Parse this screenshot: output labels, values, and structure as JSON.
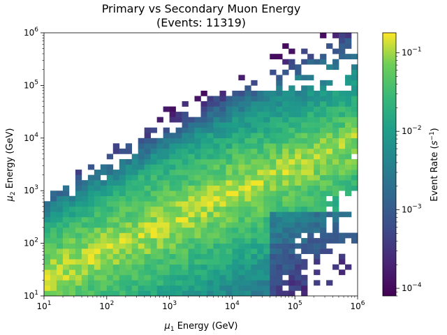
{
  "chart_data": {
    "type": "heatmap",
    "title": "Primary vs Secondary Muon Energy",
    "subtitle": "(Events: 11319)",
    "xlabel_prefix": "μ",
    "xlabel_sub": "1",
    "xlabel_suffix": " Energy (GeV)",
    "ylabel_prefix": "μ",
    "ylabel_sub": "2",
    "ylabel_suffix": " Energy (GeV)",
    "x_scale": "log",
    "y_scale": "log",
    "xlim": [
      10,
      1000000
    ],
    "ylim": [
      10,
      1000000
    ],
    "x_ticks": [
      {
        "value": 10,
        "base": "10",
        "exp": "1"
      },
      {
        "value": 100,
        "base": "10",
        "exp": "2"
      },
      {
        "value": 1000,
        "base": "10",
        "exp": "3"
      },
      {
        "value": 10000,
        "base": "10",
        "exp": "4"
      },
      {
        "value": 100000,
        "base": "10",
        "exp": "5"
      },
      {
        "value": 1000000,
        "base": "10",
        "exp": "6"
      }
    ],
    "y_ticks": [
      {
        "value": 10,
        "base": "10",
        "exp": "1"
      },
      {
        "value": 100,
        "base": "10",
        "exp": "2"
      },
      {
        "value": 1000,
        "base": "10",
        "exp": "3"
      },
      {
        "value": 10000,
        "base": "10",
        "exp": "4"
      },
      {
        "value": 100000,
        "base": "10",
        "exp": "5"
      },
      {
        "value": 1000000,
        "base": "10",
        "exp": "6"
      }
    ],
    "bins_per_decade": 10,
    "colormap": "viridis",
    "colorbar": {
      "label_prefix": "Event Rate (",
      "label_unit": "s",
      "label_exp": "−1",
      "label_suffix": ")",
      "scale": "log",
      "range": [
        8e-05,
        0.18
      ],
      "ticks": [
        {
          "value": 0.0001,
          "base": "10",
          "exp": "−4"
        },
        {
          "value": 0.001,
          "base": "10",
          "exp": "−3"
        },
        {
          "value": 0.01,
          "base": "10",
          "exp": "−2"
        },
        {
          "value": 0.1,
          "base": "10",
          "exp": "−1"
        }
      ]
    },
    "density_model": {
      "description_of_distribution": "band of high rate along low x / low y, declining with energy",
      "peak_rate": 0.15,
      "min_rate": 8e-05
    }
  }
}
